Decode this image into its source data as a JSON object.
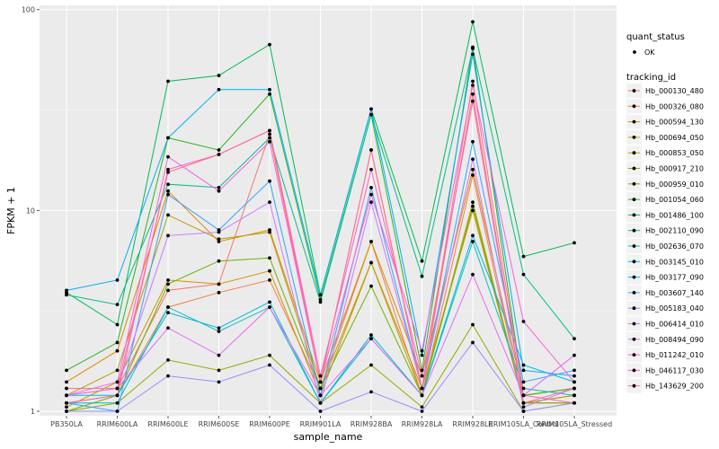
{
  "chart_data": {
    "type": "line",
    "xlabel": "sample_name",
    "ylabel": "FPKM + 1",
    "y_scale": "log10",
    "ylim": [
      0.95,
      105
    ],
    "y_ticks": [
      1,
      10,
      100
    ],
    "y_tick_labels": [
      "1",
      "10",
      "100"
    ],
    "grid": true,
    "legend_position": "right",
    "categories": [
      "PB350LA",
      "RRIM600LA",
      "RRIM600LE",
      "RRIM600SE",
      "RRIM600PE",
      "RRIM901LA",
      "RRIM928BA",
      "RRIM928LA",
      "RRIM928LE",
      "RRIM105LA_Control",
      "RRIM105LA_Stressed"
    ],
    "point_legend": {
      "title": "quant_status",
      "entries": [
        "OK"
      ]
    },
    "series_legend_title": "tracking_id",
    "series": [
      {
        "name": "Hb_000130_480",
        "color": "#F8766D",
        "values": [
          1.2,
          1.3,
          4.0,
          4.3,
          24.0,
          1.4,
          20.0,
          1.3,
          38.0,
          1.1,
          1.2
        ]
      },
      {
        "name": "Hb_000326_080",
        "color": "#F07F4B",
        "values": [
          1.1,
          1.2,
          3.3,
          3.9,
          4.5,
          1.3,
          7.0,
          1.2,
          15.0,
          1.1,
          1.1
        ]
      },
      {
        "name": "Hb_000594_130",
        "color": "#E18A00",
        "values": [
          1.4,
          2.0,
          12.5,
          7.0,
          8.0,
          1.4,
          7.0,
          1.5,
          16.0,
          1.2,
          1.3
        ]
      },
      {
        "name": "Hb_000694_050",
        "color": "#CF9400",
        "values": [
          1.05,
          1.4,
          4.5,
          4.3,
          5.0,
          1.2,
          5.5,
          1.3,
          10.0,
          1.1,
          1.2
        ]
      },
      {
        "name": "Hb_000853_050",
        "color": "#B79F00",
        "values": [
          1.2,
          1.6,
          9.5,
          7.2,
          7.8,
          1.3,
          5.5,
          1.2,
          11.0,
          1.1,
          1.2
        ]
      },
      {
        "name": "Hb_000917_210",
        "color": "#9AA800",
        "values": [
          1.0,
          1.1,
          1.8,
          1.6,
          1.9,
          1.1,
          1.7,
          1.05,
          2.7,
          1.0,
          1.1
        ]
      },
      {
        "name": "Hb_000959_010",
        "color": "#72B000",
        "values": [
          1.0,
          1.2,
          4.3,
          5.6,
          5.8,
          1.3,
          4.2,
          1.2,
          10.5,
          1.1,
          1.1
        ]
      },
      {
        "name": "Hb_001054_060",
        "color": "#2BB51C",
        "values": [
          1.6,
          2.2,
          23.0,
          20.0,
          38.0,
          3.6,
          30.0,
          1.6,
          65.0,
          1.2,
          1.3
        ]
      },
      {
        "name": "Hb_001486_100",
        "color": "#00BA55",
        "values": [
          3.9,
          2.7,
          44.0,
          47.0,
          67.0,
          3.8,
          32.0,
          5.6,
          87.0,
          5.9,
          6.9
        ]
      },
      {
        "name": "Hb_002110_090",
        "color": "#00BE8E",
        "values": [
          3.8,
          3.4,
          13.5,
          13.0,
          23.0,
          3.5,
          30.0,
          4.7,
          64.0,
          4.8,
          2.3
        ]
      },
      {
        "name": "Hb_002636_070",
        "color": "#00BFBF",
        "values": [
          1.1,
          1.1,
          3.3,
          2.5,
          3.3,
          1.1,
          2.4,
          1.2,
          7.0,
          1.3,
          1.2
        ]
      },
      {
        "name": "Hb_003145_010",
        "color": "#00BAE1",
        "values": [
          1.2,
          1.2,
          3.1,
          2.6,
          3.5,
          1.1,
          2.3,
          1.2,
          7.5,
          1.7,
          1.4
        ]
      },
      {
        "name": "Hb_003177_090",
        "color": "#00B0F6",
        "values": [
          4.0,
          4.5,
          23.0,
          40.0,
          40.0,
          3.8,
          32.0,
          1.9,
          60.0,
          1.6,
          1.5
        ]
      },
      {
        "name": "Hb_003607_140",
        "color": "#35A2FF",
        "values": [
          1.1,
          1.0,
          12.0,
          8.0,
          14.0,
          1.2,
          13.0,
          1.3,
          22.0,
          1.4,
          1.6
        ]
      },
      {
        "name": "Hb_005183_040",
        "color": "#9590FF",
        "values": [
          1.0,
          1.0,
          1.5,
          1.4,
          1.7,
          1.0,
          1.25,
          1.0,
          2.2,
          1.0,
          1.1
        ]
      },
      {
        "name": "Hb_006414_010",
        "color": "#C77CFF",
        "values": [
          1.2,
          1.3,
          7.5,
          7.8,
          11.0,
          1.1,
          11.0,
          1.3,
          18.0,
          1.05,
          1.3
        ]
      },
      {
        "name": "Hb_008494_090",
        "color": "#E76BF3",
        "values": [
          1.3,
          1.3,
          2.6,
          1.9,
          3.3,
          1.2,
          2.3,
          1.2,
          4.8,
          1.2,
          1.9
        ]
      },
      {
        "name": "Hb_011242_010",
        "color": "#F862DF",
        "values": [
          1.2,
          1.4,
          18.5,
          12.5,
          22.0,
          1.4,
          12.0,
          2.0,
          42.0,
          2.8,
          1.4
        ]
      },
      {
        "name": "Hb_046117_030",
        "color": "#FF62BC",
        "values": [
          1.1,
          1.2,
          16.0,
          19.0,
          25.0,
          1.5,
          16.0,
          1.5,
          35.0,
          1.1,
          1.3
        ]
      },
      {
        "name": "Hb_143629_200",
        "color": "#FF6C91",
        "values": [
          1.3,
          1.3,
          15.5,
          19.0,
          25.0,
          1.4,
          20.0,
          1.3,
          44.0,
          1.2,
          1.1
        ]
      }
    ]
  }
}
